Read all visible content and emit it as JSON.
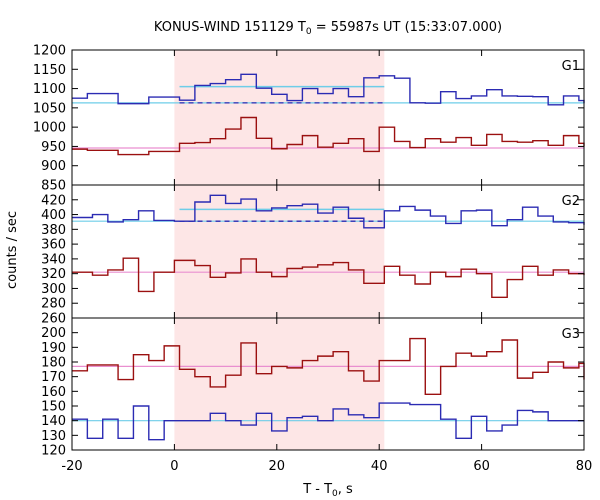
{
  "title": "KONUS-WIND 151129 T",
  "title_sub": "0",
  "title_rest": " = 55987s UT (15:33:07.000)",
  "xlabel": "T - T",
  "xlabel_sub": "0",
  "xlabel_rest": ", s",
  "ylabel": "counts / sec",
  "colors": {
    "blue_hist": "#2b2bb3",
    "red_hist": "#9b1010",
    "cyan_bg": "#6ecde8",
    "pink_bg": "#e98fd0",
    "interval_fill": "#fde6e6"
  },
  "chart_data": {
    "type": "step",
    "xlim": [
      -20,
      80
    ],
    "xticks": [
      -20,
      0,
      20,
      40,
      60,
      80
    ],
    "xtick_labels": [
      "-20",
      "0",
      "20",
      "40",
      "60",
      "80"
    ],
    "interval": [
      0,
      41
    ],
    "panels": [
      {
        "name": "G1",
        "ylim": [
          850,
          1200
        ],
        "yticks": [
          850,
          900,
          950,
          1000,
          1050,
          1100,
          1150,
          1200
        ],
        "ytick_labels": [
          "850",
          "900",
          "950",
          "1000",
          "1050",
          "1100",
          "1150",
          "1200"
        ],
        "blue_bg": 1063,
        "blue_level": 1105,
        "blue_dashed": 1063,
        "pink_bg": 946,
        "blue_x": [
          -20,
          -17,
          -11,
          -5,
          1,
          4,
          7,
          10,
          13,
          16,
          19,
          22,
          25,
          28,
          31,
          34,
          37,
          40,
          43,
          46,
          49,
          52,
          55,
          58,
          61,
          64,
          67,
          70,
          73,
          76,
          79,
          82
        ],
        "blue_y": [
          1075,
          1087,
          1061,
          1078,
          1070,
          1108,
          1113,
          1123,
          1137,
          1101,
          1085,
          1069,
          1100,
          1087,
          1100,
          1079,
          1128,
          1133,
          1127,
          1063,
          1062,
          1092,
          1074,
          1081,
          1097,
          1081,
          1080,
          1079,
          1058,
          1081,
          1069,
          1062
        ],
        "red_x": [
          -20,
          -17,
          -11,
          -5,
          1,
          4,
          7,
          10,
          13,
          16,
          19,
          22,
          25,
          28,
          31,
          34,
          37,
          40,
          43,
          46,
          49,
          52,
          55,
          58,
          61,
          64,
          67,
          70,
          73,
          76,
          79,
          82
        ],
        "red_y": [
          943,
          940,
          929,
          937,
          958,
          960,
          970,
          995,
          1025,
          971,
          944,
          955,
          978,
          948,
          958,
          970,
          937,
          1000,
          963,
          947,
          970,
          961,
          973,
          953,
          981,
          963,
          961,
          965,
          953,
          978,
          958,
          950
        ]
      },
      {
        "name": "G2",
        "ylim": [
          260,
          440
        ],
        "yticks": [
          260,
          280,
          300,
          320,
          340,
          360,
          380,
          400,
          420
        ],
        "ytick_labels": [
          "260",
          "280",
          "300",
          "320",
          "340",
          "360",
          "380",
          "400",
          "420"
        ],
        "blue_bg": 391,
        "blue_level": 407,
        "blue_dashed": 391,
        "pink_bg": 322,
        "blue_x": [
          -20,
          -16,
          -13,
          -10,
          -7,
          -4,
          0,
          4,
          7,
          10,
          13,
          16,
          19,
          22,
          25,
          28,
          31,
          34,
          37,
          41,
          44,
          47,
          50,
          53,
          56,
          59,
          62,
          65,
          68,
          71,
          74,
          77,
          80
        ],
        "blue_y": [
          396,
          400,
          390,
          393,
          405,
          392,
          391,
          417,
          426,
          415,
          421,
          405,
          409,
          412,
          414,
          402,
          410,
          395,
          382,
          405,
          411,
          406,
          398,
          388,
          405,
          406,
          385,
          393,
          410,
          398,
          390,
          389,
          386
        ],
        "red_x": [
          -20,
          -16,
          -13,
          -10,
          -7,
          -4,
          0,
          4,
          7,
          10,
          13,
          16,
          19,
          22,
          25,
          28,
          31,
          34,
          37,
          41,
          44,
          47,
          50,
          53,
          56,
          59,
          62,
          65,
          68,
          71,
          74,
          77,
          80
        ],
        "red_y": [
          322,
          318,
          325,
          341,
          296,
          322,
          338,
          331,
          315,
          321,
          340,
          322,
          316,
          327,
          329,
          332,
          335,
          325,
          307,
          330,
          318,
          306,
          322,
          316,
          326,
          320,
          288,
          312,
          330,
          318,
          325,
          320,
          318
        ]
      },
      {
        "name": "G3",
        "ylim": [
          120,
          210
        ],
        "yticks": [
          120,
          130,
          140,
          150,
          160,
          170,
          180,
          190,
          200
        ],
        "ytick_labels": [
          "120",
          "130",
          "140",
          "150",
          "160",
          "170",
          "180",
          "190",
          "200"
        ],
        "blue_bg": 140,
        "pink_bg": 177,
        "blue_x": [
          -20,
          -17,
          -14,
          -11,
          -8,
          -5,
          -2,
          1,
          4,
          7,
          10,
          13,
          16,
          19,
          22,
          25,
          28,
          31,
          34,
          37,
          40,
          43,
          46,
          49,
          52,
          55,
          58,
          61,
          64,
          67,
          70,
          73,
          76,
          79,
          82
        ],
        "blue_y": [
          141,
          128,
          141,
          128,
          150,
          127,
          140,
          140,
          140,
          145,
          140,
          137,
          145,
          133,
          142,
          143,
          140,
          148,
          144,
          142,
          152,
          152,
          151,
          151,
          141,
          128,
          143,
          133,
          137,
          147,
          146,
          140,
          140,
          140,
          140
        ],
        "red_x": [
          -20,
          -17,
          -14,
          -11,
          -8,
          -5,
          -2,
          1,
          4,
          7,
          10,
          13,
          16,
          19,
          22,
          25,
          28,
          31,
          34,
          37,
          40,
          43,
          46,
          49,
          52,
          55,
          58,
          61,
          64,
          67,
          70,
          73,
          76,
          79,
          82
        ],
        "red_y": [
          174,
          178,
          178,
          168,
          185,
          181,
          191,
          175,
          170,
          163,
          171,
          193,
          172,
          177,
          176,
          181,
          184,
          187,
          174,
          167,
          181,
          181,
          196,
          158,
          177,
          186,
          184,
          187,
          195,
          169,
          173,
          180,
          176,
          179,
          168
        ]
      }
    ]
  }
}
